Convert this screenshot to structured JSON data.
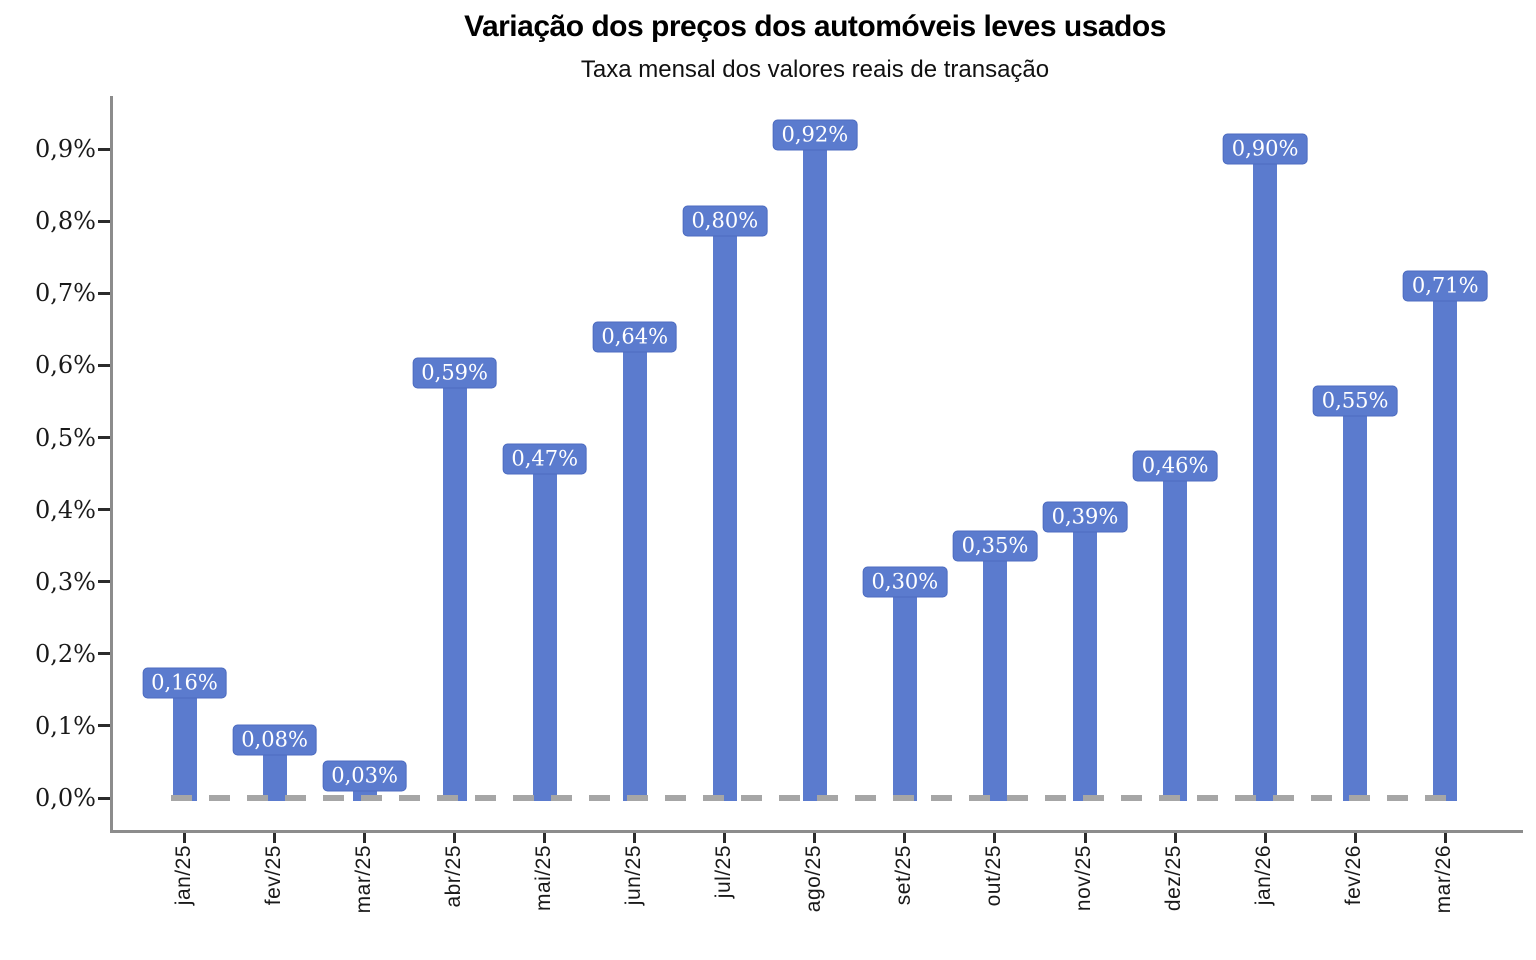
{
  "chart_data": {
    "type": "bar",
    "title": "Variação dos preços dos automóveis leves usados",
    "subtitle": "Taxa mensal dos valores reais de transação",
    "categories": [
      "jan/25",
      "fev/25",
      "mar/25",
      "abr/25",
      "mai/25",
      "jun/25",
      "jul/25",
      "ago/25",
      "set/25",
      "out/25",
      "nov/25",
      "dez/25",
      "jan/26",
      "fev/26",
      "mar/26"
    ],
    "values": [
      0.16,
      0.08,
      0.03,
      0.59,
      0.47,
      0.64,
      0.8,
      0.92,
      0.3,
      0.35,
      0.39,
      0.46,
      0.9,
      0.55,
      0.71
    ],
    "bar_labels": [
      "0,16%",
      "0,08%",
      "0,03%",
      "0,59%",
      "0,47%",
      "0,64%",
      "0,80%",
      "0,92%",
      "0,30%",
      "0,35%",
      "0,39%",
      "0,46%",
      "0,90%",
      "0,55%",
      "0,71%"
    ],
    "y_tick_values": [
      0.0,
      0.1,
      0.2,
      0.3,
      0.4,
      0.5,
      0.6,
      0.7,
      0.8,
      0.9
    ],
    "y_tick_labels": [
      "0,0%",
      "0,1%",
      "0,2%",
      "0,3%",
      "0,4%",
      "0,5%",
      "0,6%",
      "0,7%",
      "0,8%",
      "0,9%"
    ],
    "xlabel": "",
    "ylabel": "",
    "ylim": [
      0,
      0.97
    ],
    "grid": false,
    "legend": null,
    "zero_reference_line": 0.0,
    "colors": {
      "bar": "#5b7bce",
      "bar_label_box": "#5b7bce",
      "bar_label_box_border": "#4c6bc0",
      "bar_label_text": "#ffffff",
      "axis_line": "#8c8c8c",
      "tick_mark": "#2b2b2b",
      "tick_text": "#1a1a1a",
      "zero_dash": "#a6a6a6",
      "title_text": "#000000",
      "background": "#ffffff"
    }
  }
}
